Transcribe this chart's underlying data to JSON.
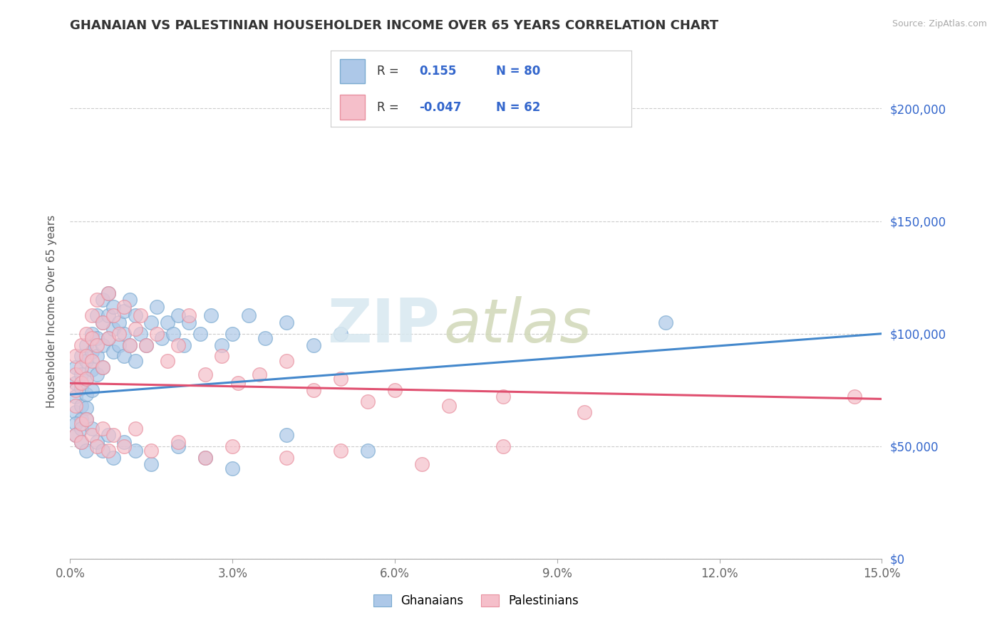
{
  "title": "GHANAIAN VS PALESTINIAN HOUSEHOLDER INCOME OVER 65 YEARS CORRELATION CHART",
  "source": "Source: ZipAtlas.com",
  "ylabel_label": "Householder Income Over 65 years",
  "watermark_zip": "ZIP",
  "watermark_atlas": "atlas",
  "xlim": [
    0.0,
    0.15
  ],
  "ylim": [
    0,
    220000
  ],
  "xticks": [
    0.0,
    0.03,
    0.06,
    0.09,
    0.12,
    0.15
  ],
  "xtick_labels": [
    "0.0%",
    "3.0%",
    "6.0%",
    "9.0%",
    "12.0%",
    "15.0%"
  ],
  "yticks": [
    0,
    50000,
    100000,
    150000,
    200000
  ],
  "ytick_labels": [
    "$0",
    "$50,000",
    "$100,000",
    "$150,000",
    "$200,000"
  ],
  "ghanaian_color": "#adc8e8",
  "ghanaian_edge": "#7aaad0",
  "palestinian_color": "#f5bfca",
  "palestinian_edge": "#e8909f",
  "trend_ghanaian_color": "#4488cc",
  "trend_palestinian_color": "#e05070",
  "legend_r_ghanaian": "0.155",
  "legend_n_ghanaian": "80",
  "legend_r_palestinian": "-0.047",
  "legend_n_palestinian": "62",
  "ghanaians_x": [
    0.001,
    0.001,
    0.001,
    0.001,
    0.002,
    0.002,
    0.002,
    0.002,
    0.002,
    0.003,
    0.003,
    0.003,
    0.003,
    0.003,
    0.004,
    0.004,
    0.004,
    0.004,
    0.005,
    0.005,
    0.005,
    0.005,
    0.006,
    0.006,
    0.006,
    0.006,
    0.007,
    0.007,
    0.007,
    0.008,
    0.008,
    0.008,
    0.009,
    0.009,
    0.01,
    0.01,
    0.01,
    0.011,
    0.011,
    0.012,
    0.012,
    0.013,
    0.014,
    0.015,
    0.016,
    0.017,
    0.018,
    0.019,
    0.02,
    0.021,
    0.022,
    0.024,
    0.026,
    0.028,
    0.03,
    0.033,
    0.036,
    0.04,
    0.045,
    0.05,
    0.001,
    0.001,
    0.002,
    0.002,
    0.003,
    0.003,
    0.004,
    0.005,
    0.006,
    0.007,
    0.008,
    0.01,
    0.012,
    0.015,
    0.02,
    0.025,
    0.03,
    0.04,
    0.055,
    0.11
  ],
  "ghanaians_y": [
    85000,
    78000,
    72000,
    65000,
    90000,
    82000,
    76000,
    68000,
    62000,
    95000,
    88000,
    80000,
    73000,
    67000,
    100000,
    92000,
    84000,
    75000,
    108000,
    98000,
    90000,
    82000,
    115000,
    105000,
    95000,
    85000,
    118000,
    108000,
    98000,
    112000,
    102000,
    92000,
    105000,
    95000,
    110000,
    100000,
    90000,
    115000,
    95000,
    108000,
    88000,
    100000,
    95000,
    105000,
    112000,
    98000,
    105000,
    100000,
    108000,
    95000,
    105000,
    100000,
    108000,
    95000,
    100000,
    108000,
    98000,
    105000,
    95000,
    100000,
    60000,
    55000,
    58000,
    52000,
    62000,
    48000,
    58000,
    52000,
    48000,
    55000,
    45000,
    52000,
    48000,
    42000,
    50000,
    45000,
    40000,
    55000,
    48000,
    105000
  ],
  "palestinians_x": [
    0.001,
    0.001,
    0.001,
    0.001,
    0.002,
    0.002,
    0.002,
    0.003,
    0.003,
    0.003,
    0.004,
    0.004,
    0.004,
    0.005,
    0.005,
    0.006,
    0.006,
    0.007,
    0.007,
    0.008,
    0.009,
    0.01,
    0.011,
    0.012,
    0.013,
    0.014,
    0.016,
    0.018,
    0.02,
    0.022,
    0.025,
    0.028,
    0.031,
    0.035,
    0.04,
    0.045,
    0.05,
    0.055,
    0.06,
    0.07,
    0.08,
    0.095,
    0.001,
    0.002,
    0.002,
    0.003,
    0.004,
    0.005,
    0.006,
    0.007,
    0.008,
    0.01,
    0.012,
    0.015,
    0.02,
    0.025,
    0.03,
    0.04,
    0.05,
    0.065,
    0.08,
    0.145
  ],
  "palestinians_y": [
    90000,
    82000,
    75000,
    68000,
    95000,
    85000,
    78000,
    100000,
    90000,
    80000,
    108000,
    98000,
    88000,
    115000,
    95000,
    105000,
    85000,
    118000,
    98000,
    108000,
    100000,
    112000,
    95000,
    102000,
    108000,
    95000,
    100000,
    88000,
    95000,
    108000,
    82000,
    90000,
    78000,
    82000,
    88000,
    75000,
    80000,
    70000,
    75000,
    68000,
    72000,
    65000,
    55000,
    60000,
    52000,
    62000,
    55000,
    50000,
    58000,
    48000,
    55000,
    50000,
    58000,
    48000,
    52000,
    45000,
    50000,
    45000,
    48000,
    42000,
    50000,
    72000
  ],
  "trend_g_x0": 0.0,
  "trend_g_y0": 73000,
  "trend_g_x1": 0.15,
  "trend_g_y1": 100000,
  "trend_p_x0": 0.0,
  "trend_p_y0": 78000,
  "trend_p_x1": 0.15,
  "trend_p_y1": 71000
}
